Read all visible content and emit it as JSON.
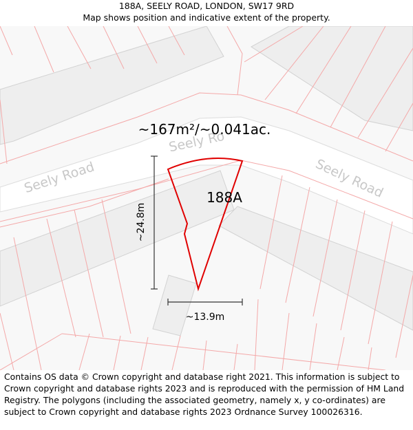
{
  "header": {
    "title": "188A, SEELY ROAD, LONDON, SW17 9RD",
    "subtitle": "Map shows position and indicative extent of the property."
  },
  "map": {
    "area_label": "~167m²/~0.041ac.",
    "property_label": "188A",
    "road_labels": [
      "Seely Road",
      "Seely Road",
      "Seely Ro"
    ],
    "height_measure": "~24.8m",
    "width_measure": "~13.9m",
    "colors": {
      "background": "#f8f8f8",
      "road": "#ffffff",
      "building": "#eeeeee",
      "building_outline": "#d2d2d2",
      "parcel_line": "#f4a8a8",
      "property_outline": "#e00000",
      "road_text": "#c8c8c8",
      "measure_line": "#333333"
    }
  },
  "footer": {
    "text": "Contains OS data © Crown copyright and database right 2021. This information is subject to Crown copyright and database rights 2023 and is reproduced with the permission of HM Land Registry. The polygons (including the associated geometry, namely x, y co-ordinates) are subject to Crown copyright and database rights 2023 Ordnance Survey 100026316."
  }
}
